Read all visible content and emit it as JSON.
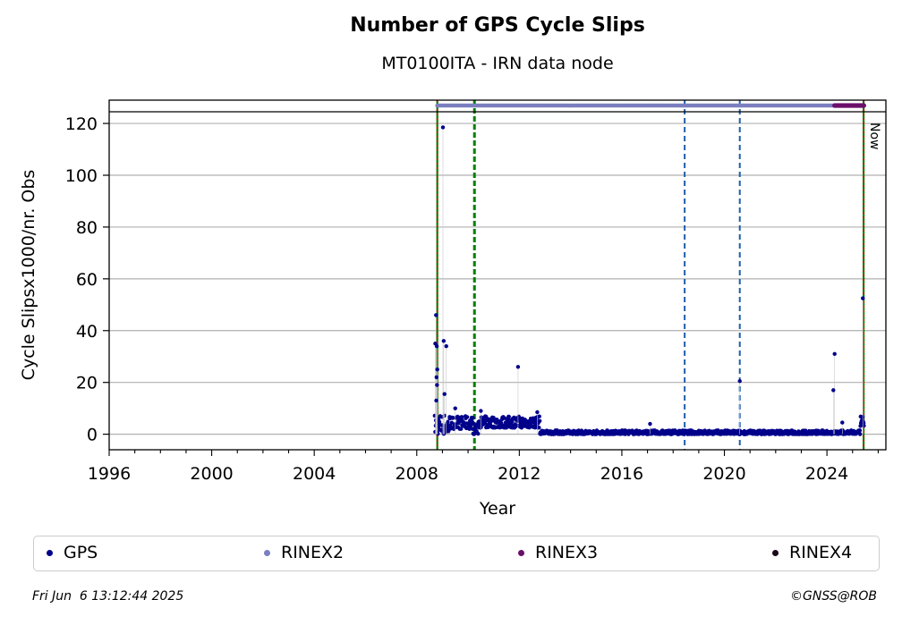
{
  "chart_data": {
    "type": "scatter",
    "title": "Number of GPS Cycle Slips",
    "subtitle": "MT0100ITA - IRN data node",
    "xlabel": "Year",
    "ylabel": "Cycle Slipsx1000/nr. Obs",
    "xlim": [
      1996,
      2026.3
    ],
    "ylim": [
      -6,
      129
    ],
    "xticks": [
      1996,
      2000,
      2004,
      2008,
      2012,
      2016,
      2020,
      2024
    ],
    "yticks": [
      0,
      20,
      40,
      60,
      80,
      100,
      120
    ],
    "grid": "horizontal",
    "now_label": "Now",
    "colors": {
      "gps": "#00008b",
      "rinex2": "#7b7fbf",
      "rinex3": "#6b0f6b",
      "rinex4": "#1a0a1a",
      "green_line": "#008000",
      "red_line": "#ff0000",
      "blue_line": "#1f5fa8"
    },
    "vertical_lines": [
      {
        "x": 2008.8,
        "style": "green-solid-red-dotted"
      },
      {
        "x": 2010.25,
        "style": "green-dashed"
      },
      {
        "x": 2018.45,
        "style": "blue-dashed"
      },
      {
        "x": 2020.6,
        "style": "blue-dashed"
      },
      {
        "x": 2025.43,
        "style": "green-solid-red-dotted"
      }
    ],
    "outliers": [
      {
        "x": 2008.75,
        "y": 46
      },
      {
        "x": 2008.72,
        "y": 35
      },
      {
        "x": 2008.78,
        "y": 34
      },
      {
        "x": 2008.8,
        "y": 25
      },
      {
        "x": 2008.77,
        "y": 22
      },
      {
        "x": 2008.79,
        "y": 19
      },
      {
        "x": 2008.76,
        "y": 13
      },
      {
        "x": 2009.02,
        "y": 118.5
      },
      {
        "x": 2009.05,
        "y": 36
      },
      {
        "x": 2009.15,
        "y": 34
      },
      {
        "x": 2009.08,
        "y": 15.5
      },
      {
        "x": 2009.5,
        "y": 10
      },
      {
        "x": 2010.5,
        "y": 9
      },
      {
        "x": 2011.95,
        "y": 26
      },
      {
        "x": 2012.7,
        "y": 8.5
      },
      {
        "x": 2017.1,
        "y": 4
      },
      {
        "x": 2020.6,
        "y": 20.5
      },
      {
        "x": 2024.3,
        "y": 31
      },
      {
        "x": 2024.25,
        "y": 17
      },
      {
        "x": 2025.4,
        "y": 52.5
      },
      {
        "x": 2024.6,
        "y": 4.5
      }
    ],
    "series": [
      {
        "name": "GPS",
        "segments": [
          {
            "x_start": 2008.7,
            "x_end": 2009.3,
            "y_low": 0,
            "y_high": 8
          },
          {
            "x_start": 2009.3,
            "x_end": 2010.2,
            "y_low": 2,
            "y_high": 7
          },
          {
            "x_start": 2010.2,
            "x_end": 2010.4,
            "y_low": 0,
            "y_high": 4
          },
          {
            "x_start": 2010.4,
            "x_end": 2012.8,
            "y_low": 2.5,
            "y_high": 7
          },
          {
            "x_start": 2012.8,
            "x_end": 2025.3,
            "y_low": 0,
            "y_high": 1.5
          },
          {
            "x_start": 2025.3,
            "x_end": 2025.45,
            "y_low": 3,
            "y_high": 7
          }
        ]
      },
      {
        "name": "RINEX2",
        "x_start": 2008.8,
        "x_end": 2024.3
      },
      {
        "name": "RINEX3",
        "x_start": 2024.3,
        "x_end": 2025.45
      },
      {
        "name": "RINEX4",
        "x_start": null,
        "x_end": null
      }
    ]
  },
  "legend": {
    "gps": "GPS",
    "rinex2": "RINEX2",
    "rinex3": "RINEX3",
    "rinex4": "RINEX4"
  },
  "footer": {
    "timestamp": "Fri Jun  6 13:12:44 2025",
    "credit": "©GNSS@ROB"
  }
}
